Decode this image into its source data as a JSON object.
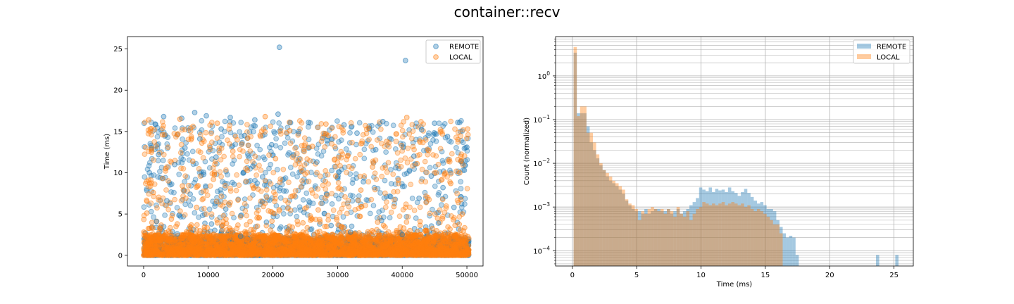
{
  "figure": {
    "title": "container::recv"
  },
  "colors": {
    "remote": "#1f77b4",
    "local": "#ff7f0e",
    "grid": "#b0b0b0"
  },
  "chart_data": [
    {
      "type": "scatter",
      "title": "",
      "xlabel": "",
      "ylabel": "Time (ms)",
      "xlim": [
        -2500,
        52500
      ],
      "ylim": [
        -1.3,
        26.5
      ],
      "xticks": [
        0,
        10000,
        20000,
        30000,
        40000,
        50000
      ],
      "xtick_labels": [
        "0",
        "10000",
        "20000",
        "30000",
        "40000",
        "50000"
      ],
      "yticks": [
        0,
        5,
        10,
        15,
        20,
        25
      ],
      "ytick_labels": [
        "0",
        "5",
        "10",
        "15",
        "20",
        "25"
      ],
      "grid": false,
      "legend": "top-right",
      "series": [
        {
          "name": "REMOTE",
          "color": "#1f77b4",
          "summary": "about 50000 points over x 0-50000; dense band at 0-2 ms with spikes to about 4 ms; sparse scatter 5-17 ms; outliers at about 25.2 ms and 23.6 ms",
          "points": [
            [
              21000,
              25.2
            ],
            [
              40500,
              23.6
            ],
            [
              20800,
              17.1
            ],
            [
              7900,
              17.3
            ],
            [
              9700,
              16.9
            ],
            [
              13400,
              16.7
            ],
            [
              17200,
              16.4
            ],
            [
              3100,
              16.8
            ],
            [
              5900,
              16.6
            ],
            [
              45000,
              16.0
            ],
            [
              37000,
              16.2
            ],
            [
              1800,
              15.9
            ],
            [
              25500,
              16.1
            ],
            [
              31000,
              15.8
            ],
            [
              48600,
              16.1
            ],
            [
              12000,
              15.3
            ],
            [
              24000,
              15.0
            ],
            [
              33000,
              14.8
            ],
            [
              43000,
              15.2
            ],
            [
              8700,
              14.1
            ],
            [
              15600,
              14.5
            ],
            [
              28400,
              13.9
            ],
            [
              47000,
              14.4
            ],
            [
              6400,
              13.0
            ],
            [
              19800,
              13.4
            ],
            [
              35900,
              12.8
            ],
            [
              50000,
              13.1
            ],
            [
              2300,
              12.2
            ],
            [
              11200,
              11.9
            ],
            [
              22500,
              12.4
            ],
            [
              41800,
              12.0
            ],
            [
              4800,
              11.0
            ],
            [
              16900,
              10.8
            ],
            [
              26800,
              11.3
            ],
            [
              39000,
              10.6
            ],
            [
              49600,
              10.3
            ],
            [
              900,
              10.0
            ],
            [
              9300,
              9.8
            ],
            [
              18400,
              9.5
            ],
            [
              30200,
              10.1
            ],
            [
              44500,
              9.6
            ],
            [
              14000,
              8.6
            ],
            [
              34000,
              8.9
            ],
            [
              46300,
              8.2
            ],
            [
              7200,
              7.4
            ],
            [
              21700,
              7.8
            ],
            [
              38200,
              7.1
            ],
            [
              3600,
              6.6
            ],
            [
              27600,
              6.3
            ],
            [
              42600,
              6.9
            ],
            [
              12700,
              5.6
            ],
            [
              24800,
              5.2
            ],
            [
              48000,
              5.8
            ],
            [
              2000,
              4.1
            ],
            [
              10500,
              3.8
            ],
            [
              19000,
              4.0
            ],
            [
              29000,
              3.6
            ],
            [
              36800,
              4.2
            ],
            [
              45600,
              3.9
            ],
            [
              5200,
              2.6
            ],
            [
              15000,
              2.3
            ],
            [
              32000,
              2.8
            ],
            [
              40000,
              2.5
            ]
          ]
        },
        {
          "name": "LOCAL",
          "color": "#ff7f0e",
          "summary": "about 50000 points over x 0-50000; dense band at 0-3 ms with spikes to about 4.5 ms; sparse scatter 5-17 ms",
          "points": [
            [
              18800,
              16.8
            ],
            [
              5600,
              16.5
            ],
            [
              800,
              16.4
            ],
            [
              11400,
              16.0
            ],
            [
              40700,
              16.7
            ],
            [
              28200,
              15.9
            ],
            [
              50100,
              15.3
            ],
            [
              22600,
              15.1
            ],
            [
              34800,
              15.4
            ],
            [
              2900,
              14.6
            ],
            [
              16100,
              14.2
            ],
            [
              46200,
              14.7
            ],
            [
              9000,
              13.6
            ],
            [
              26100,
              13.2
            ],
            [
              37600,
              13.8
            ],
            [
              1200,
              12.9
            ],
            [
              13800,
              12.6
            ],
            [
              31600,
              12.1
            ],
            [
              44100,
              12.7
            ],
            [
              7600,
              11.4
            ],
            [
              20400,
              11.7
            ],
            [
              42300,
              11.1
            ],
            [
              3400,
              10.5
            ],
            [
              24500,
              10.2
            ],
            [
              35400,
              10.7
            ],
            [
              48900,
              10.0
            ],
            [
              10800,
              9.2
            ],
            [
              29700,
              9.6
            ],
            [
              39400,
              9.1
            ],
            [
              6000,
              8.4
            ],
            [
              17700,
              8.0
            ],
            [
              47500,
              8.7
            ],
            [
              1500,
              7.6
            ],
            [
              23300,
              7.2
            ],
            [
              33600,
              7.9
            ],
            [
              14600,
              6.7
            ],
            [
              43700,
              6.4
            ],
            [
              8200,
              5.8
            ],
            [
              27000,
              5.5
            ],
            [
              38700,
              5.9
            ],
            [
              500,
              5.1
            ],
            [
              19700,
              5.3
            ],
            [
              49300,
              5.0
            ],
            [
              4300,
              4.4
            ],
            [
              12300,
              4.1
            ],
            [
              25900,
              4.5
            ],
            [
              36200,
              4.0
            ],
            [
              47900,
              4.3
            ],
            [
              2500,
              3.3
            ],
            [
              16600,
              3.1
            ],
            [
              30600,
              3.5
            ],
            [
              41200,
              3.0
            ]
          ]
        }
      ]
    },
    {
      "type": "bar",
      "title": "",
      "xlabel": "Time (ms)",
      "ylabel": "Count (normalized)",
      "xlim": [
        -1.3,
        26.5
      ],
      "ylim_log10": [
        -4.35,
        0.9
      ],
      "yscale": "log",
      "xticks": [
        0,
        5,
        10,
        15,
        20,
        25
      ],
      "xtick_labels": [
        "0",
        "5",
        "10",
        "15",
        "20",
        "25"
      ],
      "yticks": [
        0.0001,
        0.001,
        0.01,
        0.1,
        1
      ],
      "ytick_labels": [
        "10",
        "10",
        "10",
        "10",
        "10"
      ],
      "ytick_exponents": [
        "−4",
        "−3",
        "−2",
        "−1",
        "0"
      ],
      "grid": true,
      "legend": "top-right",
      "bin_width": 0.25,
      "series": [
        {
          "name": "REMOTE",
          "color": "#1f77b4",
          "bins": [
            [
              0.1,
              3.4
            ],
            [
              0.35,
              0.14
            ],
            [
              0.6,
              0.14
            ],
            [
              0.85,
              0.14
            ],
            [
              1.1,
              0.07
            ],
            [
              1.35,
              0.03
            ],
            [
              1.6,
              0.02
            ],
            [
              1.85,
              0.013
            ],
            [
              2.1,
              0.009
            ],
            [
              2.35,
              0.007
            ],
            [
              2.6,
              0.005
            ],
            [
              2.85,
              0.004
            ],
            [
              3.1,
              0.0035
            ],
            [
              3.35,
              0.003
            ],
            [
              3.6,
              0.0025
            ],
            [
              3.85,
              0.002
            ],
            [
              4.1,
              0.0014
            ],
            [
              4.35,
              0.0011
            ],
            [
              4.6,
              0.0009
            ],
            [
              4.85,
              0.0008
            ],
            [
              5.1,
              0.0008
            ],
            [
              5.35,
              0.0007
            ],
            [
              5.6,
              0.0009
            ],
            [
              5.85,
              0.0007
            ],
            [
              6.1,
              0.0008
            ],
            [
              6.35,
              0.0009
            ],
            [
              6.6,
              0.0009
            ],
            [
              6.85,
              0.0008
            ],
            [
              7.1,
              0.0008
            ],
            [
              7.35,
              0.0009
            ],
            [
              7.6,
              0.0007
            ],
            [
              7.85,
              0.0008
            ],
            [
              8.1,
              0.0009
            ],
            [
              8.35,
              0.0007
            ],
            [
              8.6,
              0.0008
            ],
            [
              8.85,
              0.0009
            ],
            [
              9.1,
              0.0011
            ],
            [
              9.35,
              0.0013
            ],
            [
              9.6,
              0.0016
            ],
            [
              9.85,
              0.0028
            ],
            [
              10.1,
              0.0025
            ],
            [
              10.35,
              0.0023
            ],
            [
              10.6,
              0.0028
            ],
            [
              10.85,
              0.0022
            ],
            [
              11.1,
              0.0026
            ],
            [
              11.35,
              0.0024
            ],
            [
              11.6,
              0.0025
            ],
            [
              11.85,
              0.0022
            ],
            [
              12.1,
              0.0028
            ],
            [
              12.35,
              0.0023
            ],
            [
              12.6,
              0.0021
            ],
            [
              12.85,
              0.0018
            ],
            [
              13.1,
              0.0022
            ],
            [
              13.35,
              0.0026
            ],
            [
              13.6,
              0.0021
            ],
            [
              13.85,
              0.0017
            ],
            [
              14.1,
              0.0014
            ],
            [
              14.35,
              0.0012
            ],
            [
              14.6,
              0.0013
            ],
            [
              14.85,
              0.0011
            ],
            [
              15.1,
              0.0009
            ],
            [
              15.35,
              0.0009
            ],
            [
              15.6,
              0.0008
            ],
            [
              15.85,
              0.0005
            ],
            [
              16.1,
              0.00035
            ],
            [
              16.35,
              0.00025
            ],
            [
              16.6,
              0.0002
            ],
            [
              16.85,
              0.00022
            ],
            [
              17.1,
              0.0002
            ],
            [
              17.35,
              8e-05
            ],
            [
              23.6,
              8e-05
            ],
            [
              25.1,
              8e-05
            ]
          ]
        },
        {
          "name": "LOCAL",
          "color": "#ff7f0e",
          "bins": [
            [
              0.1,
              4.6
            ],
            [
              0.35,
              0.12
            ],
            [
              0.6,
              0.2
            ],
            [
              0.85,
              0.2
            ],
            [
              1.1,
              0.05
            ],
            [
              1.35,
              0.05
            ],
            [
              1.6,
              0.03
            ],
            [
              1.85,
              0.016
            ],
            [
              2.1,
              0.01
            ],
            [
              2.35,
              0.007
            ],
            [
              2.6,
              0.006
            ],
            [
              2.85,
              0.005
            ],
            [
              3.1,
              0.004
            ],
            [
              3.35,
              0.0035
            ],
            [
              3.6,
              0.003
            ],
            [
              3.85,
              0.0025
            ],
            [
              4.1,
              0.0015
            ],
            [
              4.35,
              0.0012
            ],
            [
              4.6,
              0.0011
            ],
            [
              4.85,
              0.0009
            ],
            [
              5.1,
              0.0005
            ],
            [
              5.35,
              0.0008
            ],
            [
              5.6,
              0.0007
            ],
            [
              5.85,
              0.0009
            ],
            [
              6.1,
              0.001
            ],
            [
              6.35,
              0.0009
            ],
            [
              6.6,
              0.0008
            ],
            [
              6.85,
              0.0009
            ],
            [
              7.1,
              0.0007
            ],
            [
              7.35,
              0.0009
            ],
            [
              7.6,
              0.0008
            ],
            [
              7.85,
              0.0006
            ],
            [
              8.1,
              0.001
            ],
            [
              8.35,
              0.0007
            ],
            [
              8.6,
              0.0006
            ],
            [
              8.85,
              0.0008
            ],
            [
              9.1,
              0.0005
            ],
            [
              9.35,
              0.0007
            ],
            [
              9.6,
              0.0009
            ],
            [
              9.85,
              0.001
            ],
            [
              10.1,
              0.0013
            ],
            [
              10.35,
              0.0012
            ],
            [
              10.6,
              0.0011
            ],
            [
              10.85,
              0.0012
            ],
            [
              11.1,
              0.0011
            ],
            [
              11.35,
              0.0012
            ],
            [
              11.6,
              0.0013
            ],
            [
              11.85,
              0.0011
            ],
            [
              12.1,
              0.0012
            ],
            [
              12.35,
              0.0013
            ],
            [
              12.6,
              0.0012
            ],
            [
              12.85,
              0.0011
            ],
            [
              13.1,
              0.0012
            ],
            [
              13.35,
              0.001
            ],
            [
              13.6,
              0.0011
            ],
            [
              13.85,
              0.0009
            ],
            [
              14.1,
              0.0008
            ],
            [
              14.35,
              0.0009
            ],
            [
              14.6,
              0.0008
            ],
            [
              14.85,
              0.0007
            ],
            [
              15.1,
              0.0006
            ],
            [
              15.35,
              0.0005
            ],
            [
              15.6,
              0.0004
            ],
            [
              15.85,
              0.0004
            ],
            [
              16.1,
              0.00025
            ]
          ]
        }
      ]
    }
  ]
}
